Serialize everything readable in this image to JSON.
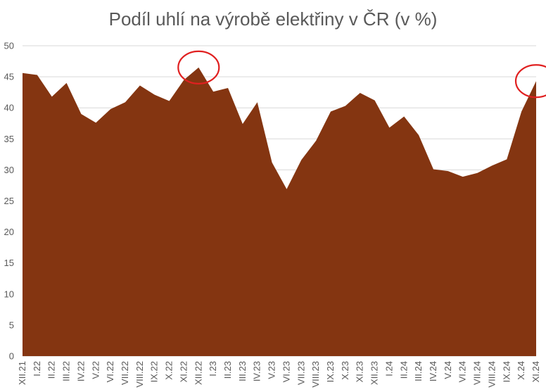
{
  "chart_data": {
    "type": "area",
    "title": "Podíl uhlí na výrobě elektřiny v ČR (v %)",
    "xlabel": "",
    "ylabel": "",
    "ylim": [
      0,
      50
    ],
    "yticks": [
      0,
      5,
      10,
      15,
      20,
      25,
      30,
      35,
      40,
      45,
      50
    ],
    "grid": true,
    "colors": {
      "area": "#843511",
      "highlight": "#e02020",
      "grid": "#d9d9d9",
      "text": "#595959"
    },
    "categories": [
      "XII.21",
      "I.22",
      "II.22",
      "III.22",
      "IV.22",
      "V.22",
      "VI.22",
      "VII.22",
      "VIII.22",
      "IX.22",
      "X.22",
      "XI.22",
      "XII.22",
      "I.23",
      "II.23",
      "III.23",
      "IV.23",
      "V.23",
      "VI.23",
      "VII.23",
      "VIII.23",
      "IX.23",
      "X.23",
      "XI.23",
      "XII.23",
      "I.24",
      "II.24",
      "III.24",
      "IV.24",
      "V.24",
      "VI.24",
      "VII.24",
      "VIII.24",
      "IX.24",
      "X.24",
      "XI.24"
    ],
    "values": [
      45.6,
      45.3,
      41.8,
      44.0,
      39.0,
      37.6,
      39.8,
      40.9,
      43.6,
      42.1,
      41.1,
      44.5,
      46.5,
      42.6,
      43.2,
      37.4,
      40.9,
      31.2,
      26.9,
      31.6,
      34.7,
      39.4,
      40.3,
      42.4,
      41.2,
      36.8,
      38.6,
      35.6,
      30.1,
      29.8,
      28.9,
      29.5,
      30.7,
      31.7,
      39.4,
      44.3
    ],
    "highlighted_points": [
      "XII.22",
      "XI.24"
    ]
  }
}
